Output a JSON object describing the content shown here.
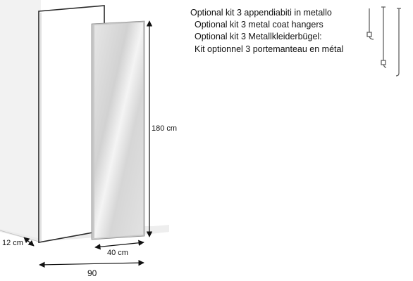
{
  "caption": {
    "lines": [
      "Optional kit 3 appendiabiti in metallo",
      "Optional kit 3 metal coat hangers",
      "Optional kit 3 Metallkleiderbügel:",
      "Kit optionnel 3 portemanteau en métal"
    ]
  },
  "dimensions": {
    "height": "180 cm",
    "depth": "12 cm",
    "mirror_width": "40 cm",
    "total_width": "90"
  },
  "colors": {
    "line": "#1a1a1a",
    "wall": "#f1f1f1",
    "mirror": "#dcdcdc",
    "frame": "#2a2a2a"
  },
  "icons": [
    "coat-hanger-icon",
    "coat-hanger-icon",
    "coat-hanger-icon"
  ]
}
